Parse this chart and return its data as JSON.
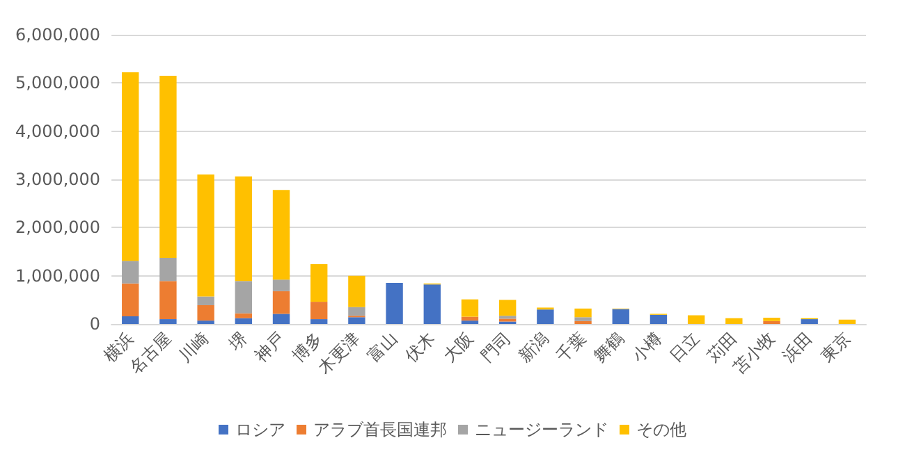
{
  "chart_data": {
    "type": "bar",
    "stacked": true,
    "categories": [
      "横浜",
      "名古屋",
      "川崎",
      "堺",
      "神戸",
      "博多",
      "木更津",
      "富山",
      "伏木",
      "大阪",
      "門司",
      "新潟",
      "千葉",
      "舞鶴",
      "小樽",
      "日立",
      "苅田",
      "苫小牧",
      "浜田",
      "東京"
    ],
    "series": [
      {
        "name": "ロシア",
        "color": "#4472c4",
        "values": [
          160000,
          100000,
          70000,
          120000,
          210000,
          100000,
          140000,
          850000,
          820000,
          70000,
          50000,
          300000,
          0,
          310000,
          190000,
          0,
          0,
          0,
          100000,
          0
        ]
      },
      {
        "name": "アラブ首長国連邦",
        "color": "#ed7d31",
        "values": [
          680000,
          790000,
          320000,
          100000,
          470000,
          360000,
          30000,
          0,
          0,
          80000,
          60000,
          0,
          60000,
          0,
          0,
          0,
          0,
          60000,
          0,
          0
        ]
      },
      {
        "name": "ニュージーランド",
        "color": "#a5a5a5",
        "values": [
          470000,
          480000,
          180000,
          670000,
          240000,
          null,
          180000,
          0,
          0,
          null,
          60000,
          0,
          80000,
          0,
          0,
          0,
          null,
          0,
          0,
          0
        ]
      },
      {
        "name": "その他",
        "color": "#ffc000",
        "values": [
          3910000,
          3780000,
          2530000,
          2170000,
          1860000,
          780000,
          650000,
          0,
          20000,
          360000,
          330000,
          40000,
          180000,
          10000,
          20000,
          180000,
          120000,
          70000,
          20000,
          90000
        ]
      }
    ],
    "ylim": [
      0,
      6000000
    ],
    "yticks": [
      0,
      {
        "value": 1000000,
        "label": "1,000,000"
      },
      {
        "value": 2000000,
        "label": "2,000,000"
      },
      {
        "value": 3000000,
        "label": "3,000,000"
      },
      {
        "value": 4000000,
        "label": "4,000,000"
      },
      {
        "value": 5000000,
        "label": "5,000,000"
      },
      {
        "value": 6000000,
        "label": "6,000,000"
      }
    ],
    "grid": "y",
    "legend": "bottom"
  }
}
